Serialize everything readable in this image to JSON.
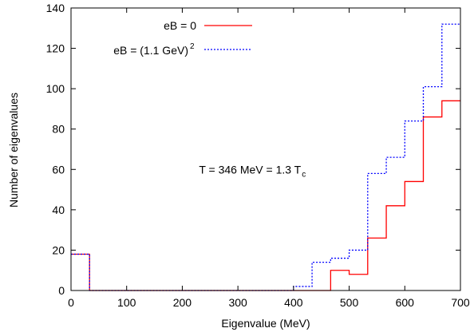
{
  "chart_data": {
    "type": "line",
    "step": true,
    "xlabel": "Eigenvalue (MeV)",
    "ylabel": "Number of eigenvalues",
    "xlim": [
      0,
      700
    ],
    "ylim": [
      0,
      140
    ],
    "xticks": [
      0,
      100,
      200,
      300,
      400,
      500,
      600,
      700
    ],
    "yticks": [
      0,
      20,
      40,
      60,
      80,
      100,
      120,
      140
    ],
    "grid": false,
    "legend_position": "top-left",
    "annotation": {
      "text": "T = 346 MeV = 1.3 T",
      "subscript": "c",
      "x": 230,
      "y": 60
    },
    "series": [
      {
        "name": "eB = 0",
        "color": "#ff0000",
        "style": "solid",
        "bins": [
          0,
          33.3,
          66.7,
          100,
          133.3,
          166.7,
          200,
          233.3,
          266.7,
          300,
          333.3,
          366.7,
          400,
          433.3,
          466.7,
          500,
          533.3,
          566.7,
          600,
          633.3,
          666.7,
          700
        ],
        "counts": [
          18,
          0,
          0,
          0,
          0,
          0,
          0,
          0,
          0,
          0,
          0,
          0,
          0,
          0,
          10,
          8,
          26,
          42,
          54,
          86,
          94
        ]
      },
      {
        "name": "eB = (1.1 GeV)",
        "name_superscript": "2",
        "color": "#0000ff",
        "style": "dotted",
        "bins": [
          0,
          33.3,
          66.7,
          100,
          133.3,
          166.7,
          200,
          233.3,
          266.7,
          300,
          333.3,
          366.7,
          400,
          433.3,
          466.7,
          500,
          533.3,
          566.7,
          600,
          633.3,
          666.7,
          700
        ],
        "counts": [
          18,
          0,
          0,
          0,
          0,
          0,
          0,
          0,
          0,
          0,
          0,
          0,
          2,
          14,
          16,
          20,
          58,
          66,
          84,
          101,
          132
        ]
      }
    ]
  }
}
